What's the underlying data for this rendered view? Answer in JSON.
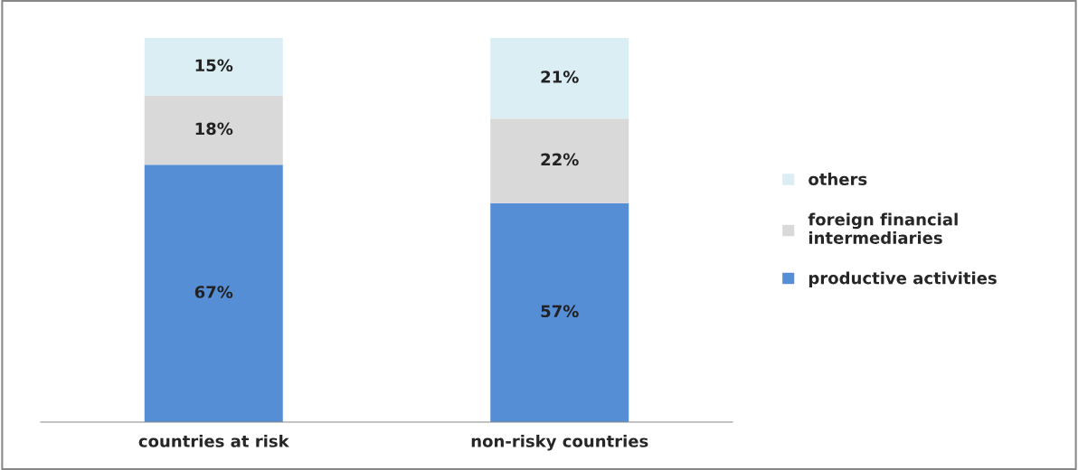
{
  "chart_data": {
    "type": "bar",
    "stacked": true,
    "categories": [
      "countries at risk",
      "non-risky countries"
    ],
    "series": [
      {
        "name": "productive activities",
        "color": "#558ed5",
        "values": [
          67,
          57
        ],
        "value_labels": [
          "67%",
          "57%"
        ]
      },
      {
        "name": "foreign financial\nintermediaries",
        "color": "#d9d9d9",
        "values": [
          18,
          22
        ],
        "value_labels": [
          "18%",
          "22%"
        ]
      },
      {
        "name": "others",
        "color": "#dbeef4",
        "values": [
          15,
          21
        ],
        "value_labels": [
          "15%",
          "21%"
        ]
      }
    ],
    "tick_labels": "x",
    "legend": "right",
    "grid": false
  }
}
